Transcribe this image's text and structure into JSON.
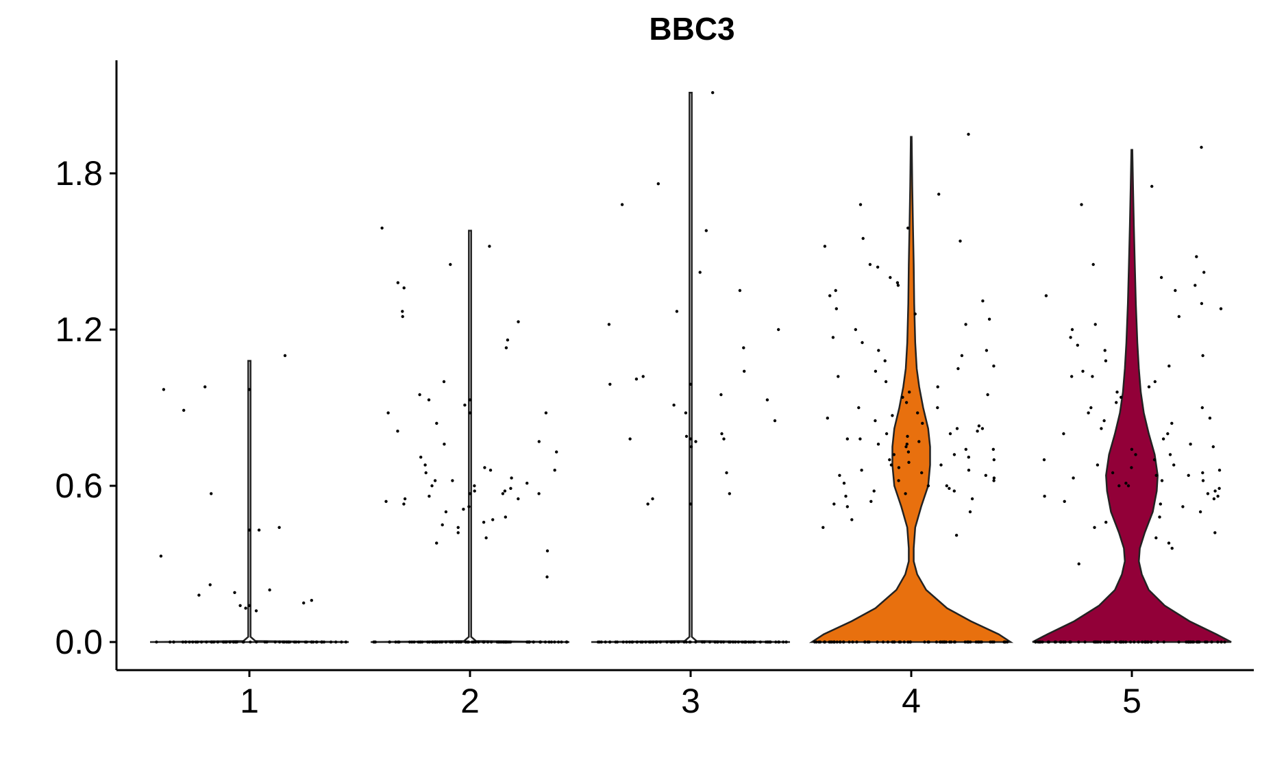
{
  "chart_data": {
    "type": "violin",
    "title": "BBC3",
    "xlabel": "",
    "ylabel": "",
    "categories": [
      "1",
      "2",
      "3",
      "4",
      "5"
    ],
    "yticks": [
      "0.0",
      "0.6",
      "1.2",
      "1.8"
    ],
    "ytick_values": [
      0,
      0.6,
      1.2,
      1.8
    ],
    "ylim": [
      -0.105,
      2.22
    ],
    "grid": false,
    "legend": "none",
    "colors": [
      "#ffffff",
      "#ffffff",
      "#ffffff",
      "#E8700E",
      "#920038"
    ],
    "violins": [
      {
        "category": "1",
        "color": "#ffffff",
        "max": 1.08,
        "profile": [
          [
            0,
            1
          ],
          [
            0.004,
            0.06
          ],
          [
            0.02,
            0.012
          ],
          [
            0.2,
            0.012
          ],
          [
            1.08,
            0.012
          ]
        ]
      },
      {
        "category": "2",
        "color": "#ffffff",
        "max": 1.58,
        "profile": [
          [
            0,
            1
          ],
          [
            0.004,
            0.06
          ],
          [
            0.02,
            0.012
          ],
          [
            0.6,
            0.012
          ],
          [
            1.58,
            0.012
          ]
        ]
      },
      {
        "category": "3",
        "color": "#ffffff",
        "max": 2.11,
        "profile": [
          [
            0,
            1
          ],
          [
            0.004,
            0.06
          ],
          [
            0.02,
            0.012
          ],
          [
            0.8,
            0.012
          ],
          [
            2.11,
            0.012
          ]
        ]
      },
      {
        "category": "4",
        "color": "#E8700E",
        "max": 1.94,
        "profile": [
          [
            0,
            1
          ],
          [
            0.03,
            0.88
          ],
          [
            0.08,
            0.6
          ],
          [
            0.13,
            0.36
          ],
          [
            0.2,
            0.15
          ],
          [
            0.26,
            0.06
          ],
          [
            0.31,
            0.025
          ],
          [
            0.36,
            0.025
          ],
          [
            0.44,
            0.04
          ],
          [
            0.52,
            0.1
          ],
          [
            0.6,
            0.17
          ],
          [
            0.68,
            0.19
          ],
          [
            0.75,
            0.19
          ],
          [
            0.82,
            0.17
          ],
          [
            0.9,
            0.12
          ],
          [
            0.98,
            0.08
          ],
          [
            1.05,
            0.055
          ],
          [
            1.15,
            0.04
          ],
          [
            1.3,
            0.03
          ],
          [
            1.45,
            0.025
          ],
          [
            1.6,
            0.017
          ],
          [
            1.75,
            0.01
          ],
          [
            1.94,
            0.004
          ]
        ]
      },
      {
        "category": "5",
        "color": "#920038",
        "max": 1.89,
        "profile": [
          [
            0,
            1
          ],
          [
            0.03,
            0.85
          ],
          [
            0.08,
            0.58
          ],
          [
            0.14,
            0.33
          ],
          [
            0.2,
            0.17
          ],
          [
            0.26,
            0.1
          ],
          [
            0.31,
            0.07
          ],
          [
            0.36,
            0.08
          ],
          [
            0.42,
            0.13
          ],
          [
            0.5,
            0.21
          ],
          [
            0.58,
            0.25
          ],
          [
            0.64,
            0.26
          ],
          [
            0.72,
            0.23
          ],
          [
            0.8,
            0.17
          ],
          [
            0.88,
            0.12
          ],
          [
            0.96,
            0.09
          ],
          [
            1.05,
            0.07
          ],
          [
            1.15,
            0.055
          ],
          [
            1.3,
            0.04
          ],
          [
            1.45,
            0.03
          ],
          [
            1.6,
            0.02
          ],
          [
            1.75,
            0.012
          ],
          [
            1.89,
            0.005
          ]
        ]
      }
    ],
    "points": [
      {
        "category": "1",
        "n_zero": 60,
        "values": [
          0.98,
          0.89,
          0.44,
          0.33,
          0.57,
          0.22,
          0.19,
          0.18,
          0.15,
          0.13,
          0.12,
          0.16,
          0.2,
          1.1,
          0.97,
          0.43,
          0.14
        ]
      },
      {
        "category": "2",
        "n_zero": 80,
        "values": [
          1.59,
          1.52,
          1.45,
          1.38,
          1.36,
          1.27,
          1.25,
          1.23,
          1.16,
          1.13,
          1.0,
          0.95,
          0.91,
          0.88,
          0.84,
          0.81,
          0.77,
          0.76,
          0.73,
          0.71,
          0.68,
          0.67,
          0.66,
          0.65,
          0.63,
          0.62,
          0.61,
          0.6,
          0.6,
          0.59,
          0.58,
          0.58,
          0.57,
          0.56,
          0.55,
          0.55,
          0.54,
          0.53,
          0.52,
          0.51,
          0.5,
          0.48,
          0.47,
          0.46,
          0.45,
          0.44,
          0.42,
          0.4,
          0.38,
          0.35,
          0.25,
          0.66,
          0.62,
          0.57,
          0.93,
          0.88
        ]
      },
      {
        "category": "3",
        "n_zero": 70,
        "values": [
          2.11,
          1.76,
          1.68,
          1.58,
          1.42,
          1.35,
          1.27,
          1.22,
          1.2,
          1.13,
          1.04,
          1.02,
          1.01,
          0.95,
          0.93,
          0.91,
          0.88,
          0.85,
          0.8,
          0.79,
          0.78,
          0.77,
          0.75,
          0.65,
          0.57,
          0.55,
          0.53,
          0.99,
          0.78
        ]
      },
      {
        "category": "4",
        "n_zero": 70,
        "values": [
          1.95,
          1.72,
          1.68,
          1.59,
          1.55,
          1.54,
          1.52,
          1.45,
          1.44,
          1.4,
          1.38,
          1.37,
          1.35,
          1.33,
          1.31,
          1.28,
          1.26,
          1.24,
          1.22,
          1.2,
          1.17,
          1.15,
          1.12,
          1.1,
          1.08,
          1.06,
          1.04,
          1.02,
          1.0,
          0.98,
          0.96,
          0.94,
          0.92,
          0.9,
          0.88,
          0.86,
          0.84,
          0.83,
          0.82,
          0.81,
          0.8,
          0.79,
          0.78,
          0.77,
          0.76,
          0.75,
          0.74,
          0.73,
          0.72,
          0.71,
          0.7,
          0.69,
          0.68,
          0.67,
          0.66,
          0.65,
          0.64,
          0.63,
          0.62,
          0.61,
          0.6,
          0.59,
          0.58,
          0.57,
          0.56,
          0.55,
          0.54,
          0.53,
          0.52,
          0.5,
          0.47,
          0.44,
          0.41,
          0.85,
          0.82,
          0.78,
          0.74,
          0.7,
          0.66,
          0.62,
          0.9,
          0.87,
          0.8,
          0.76,
          0.72,
          0.68,
          0.6,
          0.95,
          1.05,
          1.12,
          0.58,
          0.64
        ]
      },
      {
        "category": "5",
        "n_zero": 70,
        "values": [
          1.9,
          1.75,
          1.68,
          1.48,
          1.45,
          1.42,
          1.4,
          1.37,
          1.35,
          1.33,
          1.3,
          1.28,
          1.25,
          1.22,
          1.2,
          1.17,
          1.14,
          1.12,
          1.1,
          1.08,
          1.06,
          1.04,
          1.02,
          1.0,
          0.98,
          0.96,
          0.94,
          0.92,
          0.9,
          0.88,
          0.86,
          0.84,
          0.82,
          0.8,
          0.78,
          0.76,
          0.74,
          0.72,
          0.7,
          0.68,
          0.67,
          0.66,
          0.65,
          0.64,
          0.63,
          0.62,
          0.61,
          0.6,
          0.59,
          0.58,
          0.57,
          0.56,
          0.55,
          0.54,
          0.53,
          0.52,
          0.5,
          0.48,
          0.46,
          0.44,
          0.42,
          0.4,
          0.38,
          0.36,
          0.3,
          0.85,
          0.8,
          0.75,
          0.7,
          0.65,
          0.6,
          0.9,
          0.62,
          0.68,
          0.72,
          1.02,
          0.56,
          0.64
        ]
      }
    ]
  }
}
